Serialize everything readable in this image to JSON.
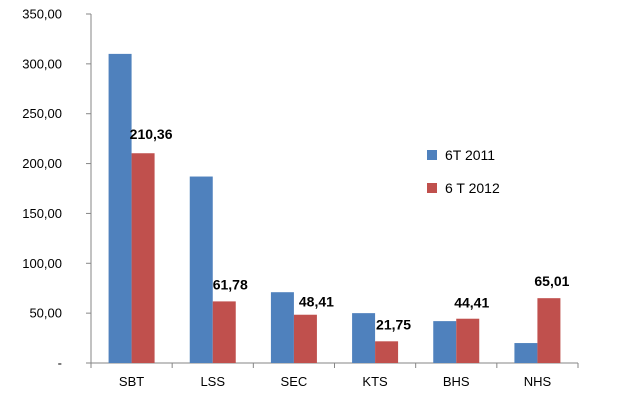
{
  "chart_data": {
    "type": "bar",
    "title": "",
    "xlabel": "",
    "ylabel": "",
    "categories": [
      "SBT",
      "LSS",
      "SEC",
      "KTS",
      "BHS",
      "NHS"
    ],
    "ylim": [
      0,
      350
    ],
    "yticks": [
      0,
      50,
      100,
      150,
      200,
      250,
      300,
      350
    ],
    "ytick_labels": [
      "-",
      "50,00",
      "100,00",
      "150,00",
      "200,00",
      "250,00",
      "300,00",
      "350,00"
    ],
    "series": [
      {
        "name": "6T 2011",
        "color": "#4f81bd",
        "values": [
          310,
          187,
          71,
          50,
          42,
          20
        ]
      },
      {
        "name": "6 T 2012",
        "color": "#c0504d",
        "values": [
          210.36,
          61.78,
          48.41,
          21.75,
          44.41,
          65.01
        ],
        "data_labels": [
          "210,36",
          "61,78",
          "48,41",
          "21,75",
          "44,41",
          "65,01"
        ]
      }
    ],
    "legend_position": "right"
  }
}
